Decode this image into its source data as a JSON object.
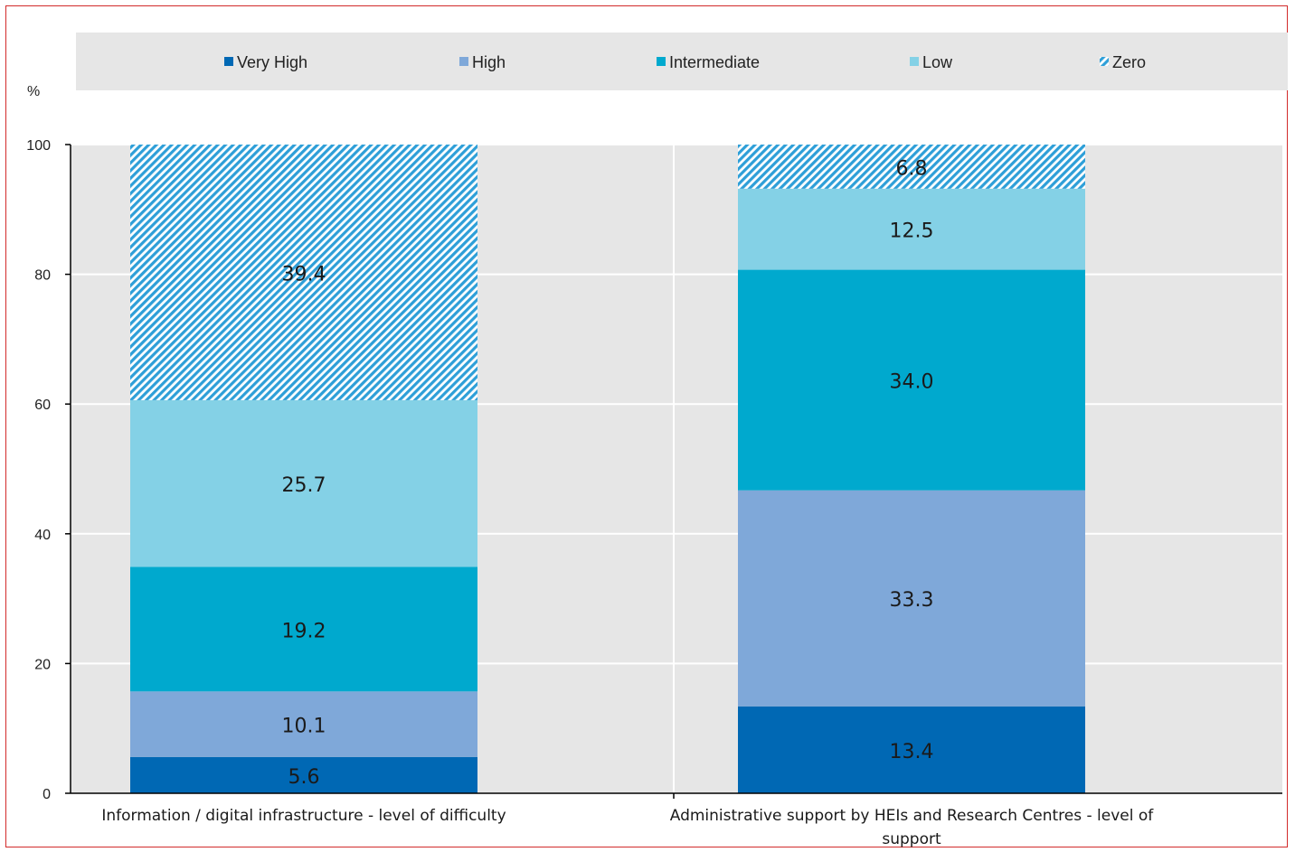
{
  "chart_data": {
    "type": "bar",
    "stacked": true,
    "ylabel": "%",
    "ylim": [
      0,
      100
    ],
    "yticks": [
      0,
      20,
      40,
      60,
      80,
      100
    ],
    "grid": true,
    "legend_position": "top",
    "categories": [
      [
        "Information / digital infrastructure - level of difficulty"
      ],
      [
        "Administrative support by HEIs and Research Centres - level of",
        "support"
      ]
    ],
    "series": [
      {
        "name": "Very High",
        "color": "#0068b4",
        "values": [
          5.6,
          13.4
        ]
      },
      {
        "name": "High",
        "color": "#7fa8d9",
        "values": [
          10.1,
          33.3
        ]
      },
      {
        "name": "Intermediate",
        "color": "#00a9ce",
        "values": [
          19.2,
          34.0
        ]
      },
      {
        "name": "Low",
        "color": "#84d1e6",
        "values": [
          25.7,
          12.5
        ]
      },
      {
        "name": "Zero",
        "color": "#2e9fd8",
        "pattern": "hatch",
        "values": [
          39.4,
          6.8
        ]
      }
    ]
  }
}
